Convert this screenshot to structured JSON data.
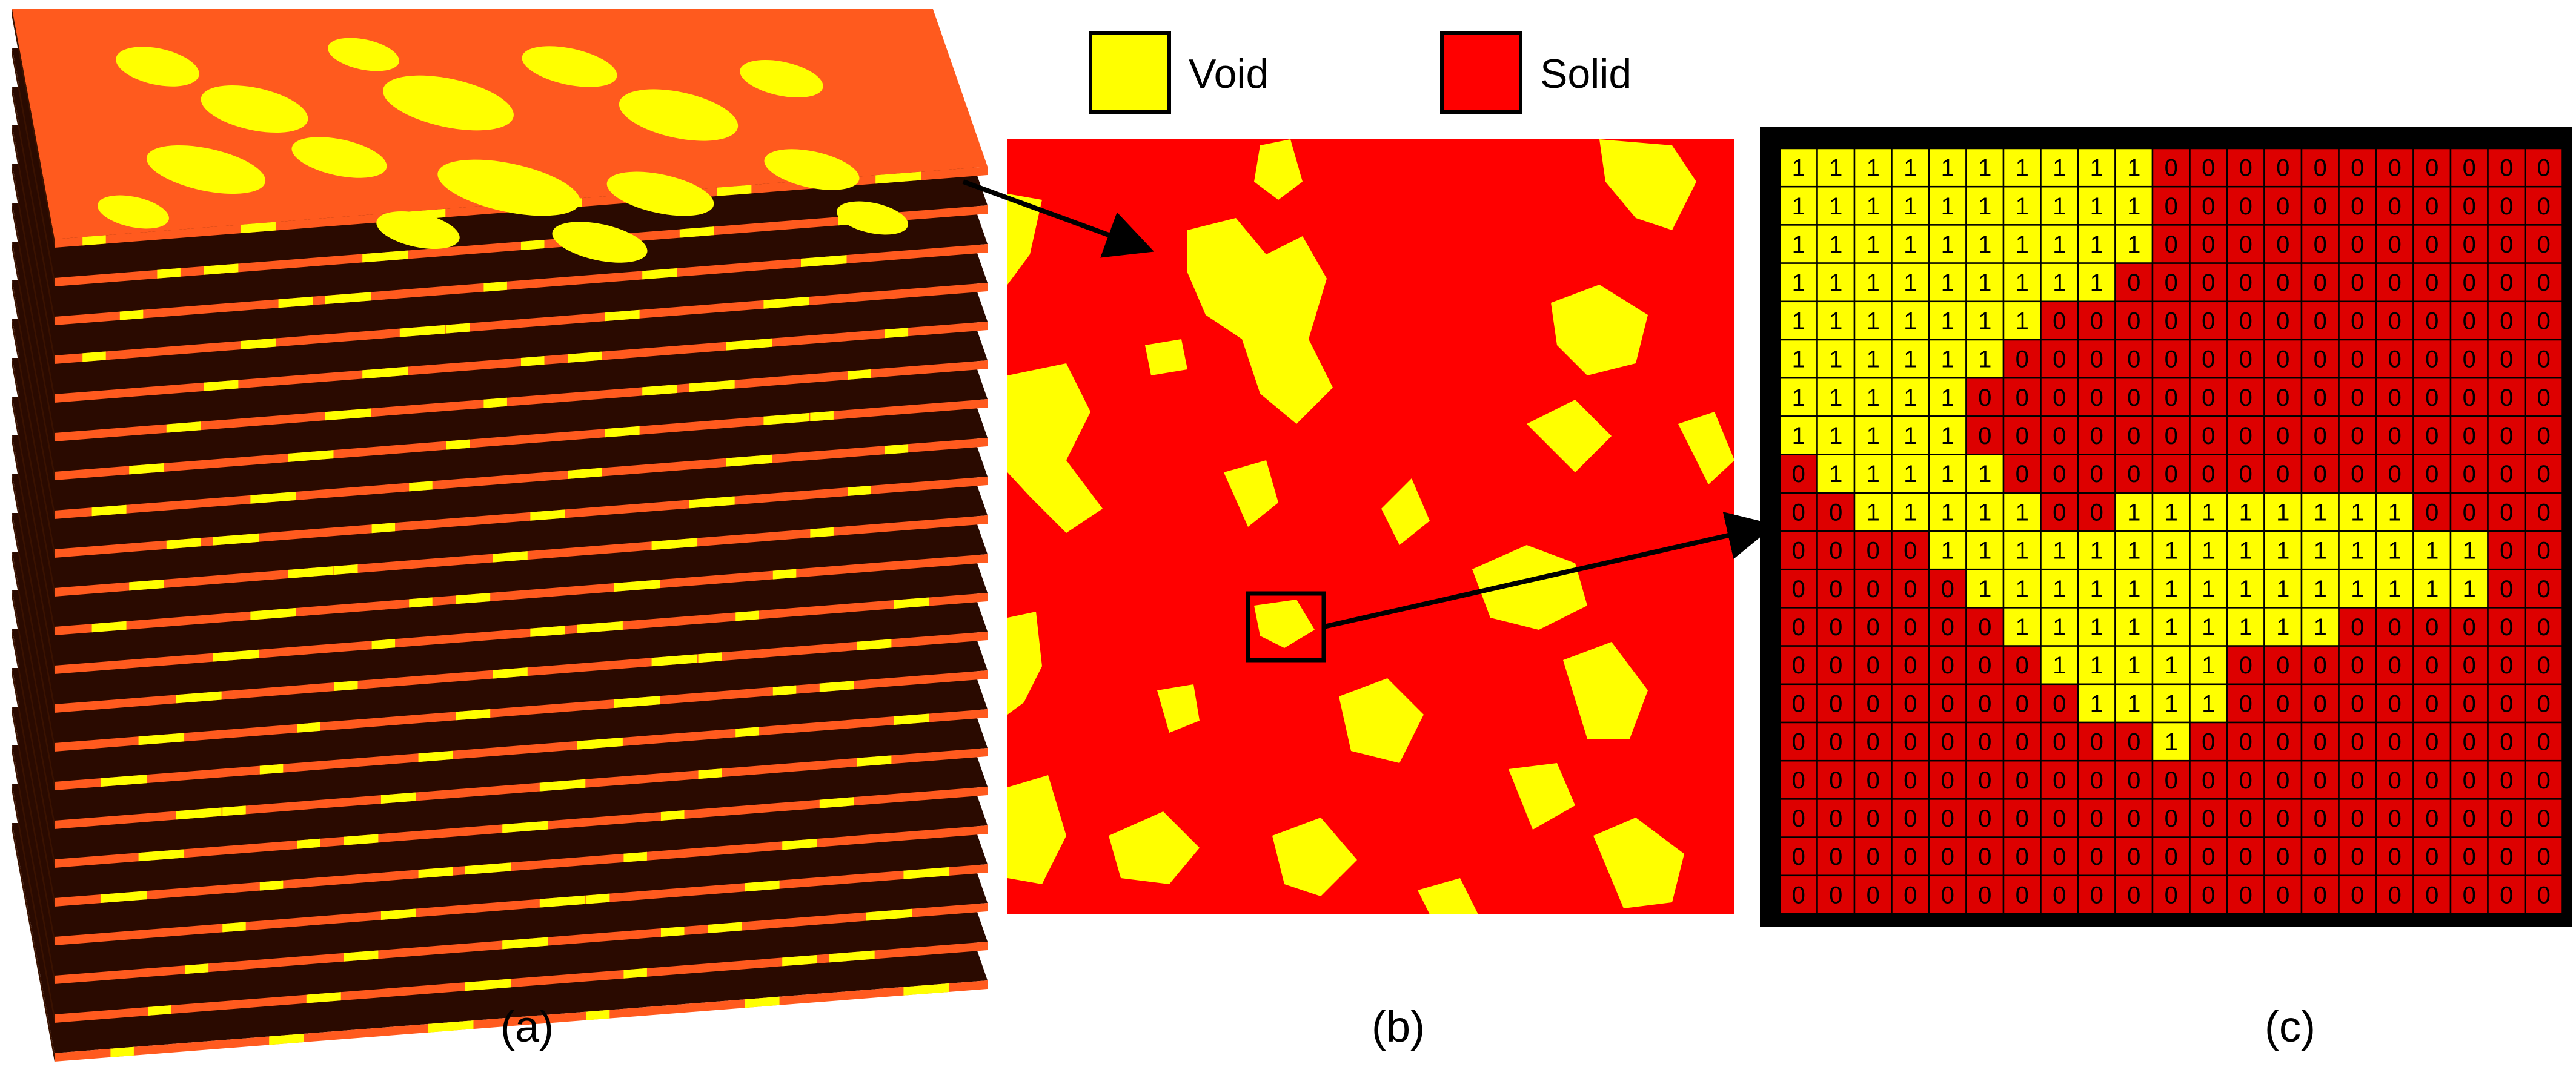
{
  "legend": {
    "items": [
      {
        "label": "Void",
        "color": "#ffff00"
      },
      {
        "label": "Solid",
        "color": "#ff0000"
      }
    ]
  },
  "panels": {
    "a": {
      "label": "(a)",
      "slice_top_color": "#ff5a1e",
      "pore_color": "#ffff00",
      "dark_color": "#2a0a00"
    },
    "b": {
      "label": "(b)",
      "solid_color": "#ff0000",
      "void_color": "#ffff00"
    },
    "c": {
      "label": "(c)",
      "solid_color": "#dd0000",
      "void_color": "#ffff00",
      "border_color": "#000000",
      "grid": [
        [
          1,
          1,
          1,
          1,
          1,
          1,
          1,
          1,
          1,
          1,
          0,
          0,
          0,
          0,
          0,
          0,
          0,
          0,
          0,
          0,
          0
        ],
        [
          1,
          1,
          1,
          1,
          1,
          1,
          1,
          1,
          1,
          1,
          0,
          0,
          0,
          0,
          0,
          0,
          0,
          0,
          0,
          0,
          0
        ],
        [
          1,
          1,
          1,
          1,
          1,
          1,
          1,
          1,
          1,
          1,
          0,
          0,
          0,
          0,
          0,
          0,
          0,
          0,
          0,
          0,
          0
        ],
        [
          1,
          1,
          1,
          1,
          1,
          1,
          1,
          1,
          1,
          0,
          0,
          0,
          0,
          0,
          0,
          0,
          0,
          0,
          0,
          0,
          0
        ],
        [
          1,
          1,
          1,
          1,
          1,
          1,
          1,
          0,
          0,
          0,
          0,
          0,
          0,
          0,
          0,
          0,
          0,
          0,
          0,
          0,
          0
        ],
        [
          1,
          1,
          1,
          1,
          1,
          1,
          0,
          0,
          0,
          0,
          0,
          0,
          0,
          0,
          0,
          0,
          0,
          0,
          0,
          0,
          0
        ],
        [
          1,
          1,
          1,
          1,
          1,
          0,
          0,
          0,
          0,
          0,
          0,
          0,
          0,
          0,
          0,
          0,
          0,
          0,
          0,
          0,
          0
        ],
        [
          1,
          1,
          1,
          1,
          1,
          0,
          0,
          0,
          0,
          0,
          0,
          0,
          0,
          0,
          0,
          0,
          0,
          0,
          0,
          0,
          0
        ],
        [
          0,
          1,
          1,
          1,
          1,
          1,
          0,
          0,
          0,
          0,
          0,
          0,
          0,
          0,
          0,
          0,
          0,
          0,
          0,
          0,
          0
        ],
        [
          0,
          0,
          1,
          1,
          1,
          1,
          1,
          0,
          0,
          1,
          1,
          1,
          1,
          1,
          1,
          1,
          1,
          0,
          0,
          0,
          0
        ],
        [
          0,
          0,
          0,
          0,
          1,
          1,
          1,
          1,
          1,
          1,
          1,
          1,
          1,
          1,
          1,
          1,
          1,
          1,
          1,
          0,
          0
        ],
        [
          0,
          0,
          0,
          0,
          0,
          1,
          1,
          1,
          1,
          1,
          1,
          1,
          1,
          1,
          1,
          1,
          1,
          1,
          1,
          0,
          0
        ],
        [
          0,
          0,
          0,
          0,
          0,
          0,
          1,
          1,
          1,
          1,
          1,
          1,
          1,
          1,
          1,
          0,
          0,
          0,
          0,
          0,
          0
        ],
        [
          0,
          0,
          0,
          0,
          0,
          0,
          0,
          1,
          1,
          1,
          1,
          1,
          0,
          0,
          0,
          0,
          0,
          0,
          0,
          0,
          0
        ],
        [
          0,
          0,
          0,
          0,
          0,
          0,
          0,
          0,
          1,
          1,
          1,
          1,
          0,
          0,
          0,
          0,
          0,
          0,
          0,
          0,
          0
        ],
        [
          0,
          0,
          0,
          0,
          0,
          0,
          0,
          0,
          0,
          0,
          1,
          0,
          0,
          0,
          0,
          0,
          0,
          0,
          0,
          0,
          0
        ],
        [
          0,
          0,
          0,
          0,
          0,
          0,
          0,
          0,
          0,
          0,
          0,
          0,
          0,
          0,
          0,
          0,
          0,
          0,
          0,
          0,
          0
        ],
        [
          0,
          0,
          0,
          0,
          0,
          0,
          0,
          0,
          0,
          0,
          0,
          0,
          0,
          0,
          0,
          0,
          0,
          0,
          0,
          0,
          0
        ],
        [
          0,
          0,
          0,
          0,
          0,
          0,
          0,
          0,
          0,
          0,
          0,
          0,
          0,
          0,
          0,
          0,
          0,
          0,
          0,
          0,
          0
        ],
        [
          0,
          0,
          0,
          0,
          0,
          0,
          0,
          0,
          0,
          0,
          0,
          0,
          0,
          0,
          0,
          0,
          0,
          0,
          0,
          0,
          0
        ]
      ]
    }
  }
}
